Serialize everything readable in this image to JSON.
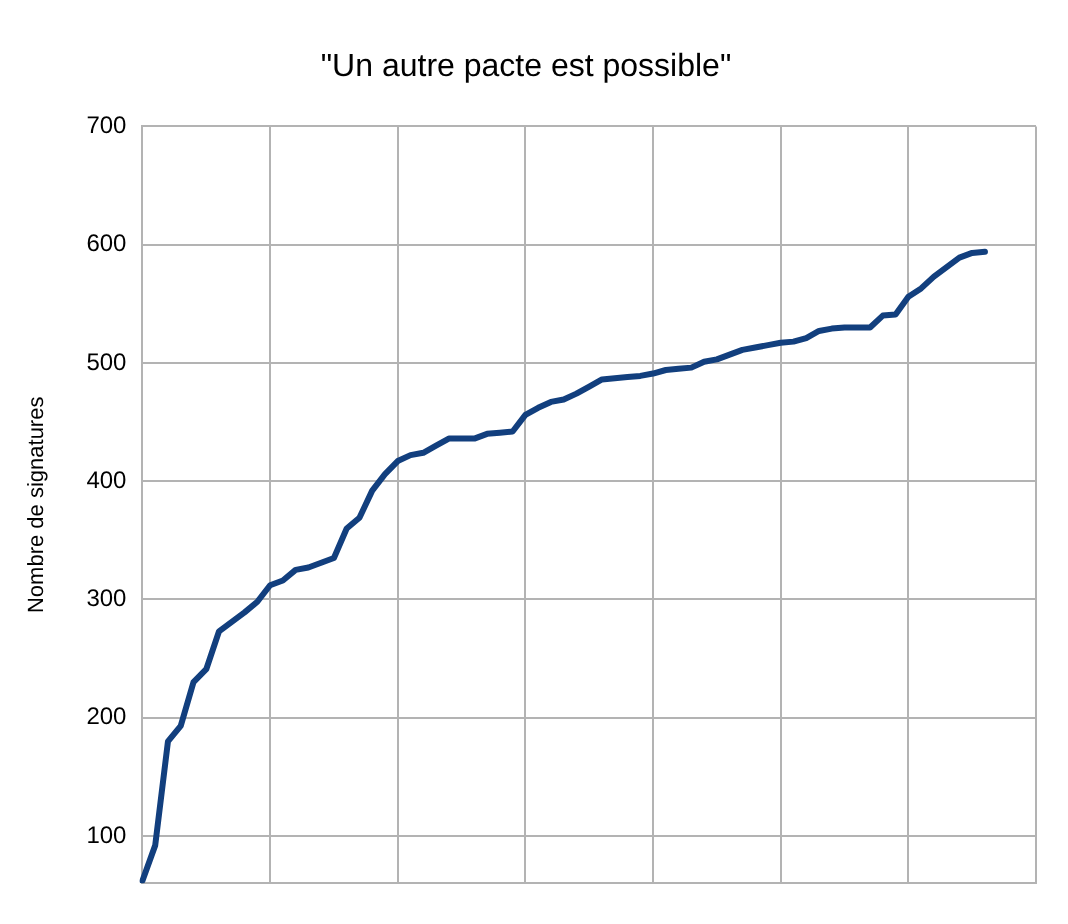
{
  "chart_data": {
    "type": "line",
    "title": "\"Un autre pacte est possible\"",
    "ylabel": "Nombre de signatures",
    "categories": [
      null,
      null,
      null,
      null,
      null,
      null,
      null,
      null,
      null,
      null,
      null,
      null,
      null,
      null,
      null,
      null,
      null,
      null,
      null,
      null,
      null,
      null,
      null,
      null,
      null,
      null,
      null,
      null,
      null,
      null,
      null,
      null,
      null,
      null,
      null,
      null,
      null,
      null,
      null,
      null,
      null,
      null,
      null,
      null,
      null,
      null,
      null,
      null,
      null,
      null,
      null,
      null,
      null,
      null,
      null,
      null,
      null,
      null,
      null,
      null,
      null,
      null,
      null,
      null,
      null,
      null,
      null,
      null,
      null,
      null,
      null
    ],
    "ylim": [
      60,
      700
    ],
    "yticks": [
      100,
      200,
      300,
      400,
      500,
      600,
      700
    ],
    "grid": true,
    "legend": false,
    "marker": "none",
    "line_style": "solid",
    "series": [
      {
        "color": "#123f7e",
        "values": [
          62,
          92,
          180,
          193,
          230,
          241,
          273,
          281,
          289,
          298,
          312,
          316,
          325,
          327,
          331,
          335,
          360,
          369,
          392,
          406,
          417,
          422,
          424,
          430,
          436,
          436,
          436,
          440,
          441,
          442,
          456,
          462,
          467,
          469,
          474,
          480,
          486,
          487,
          488,
          489,
          491,
          494,
          495,
          496,
          501,
          503,
          507,
          511,
          513,
          515,
          517,
          518,
          521,
          527,
          529,
          530,
          530,
          530,
          540,
          541,
          556,
          563,
          573,
          581,
          589,
          593,
          594,
          null,
          null,
          null,
          null
        ]
      }
    ]
  }
}
